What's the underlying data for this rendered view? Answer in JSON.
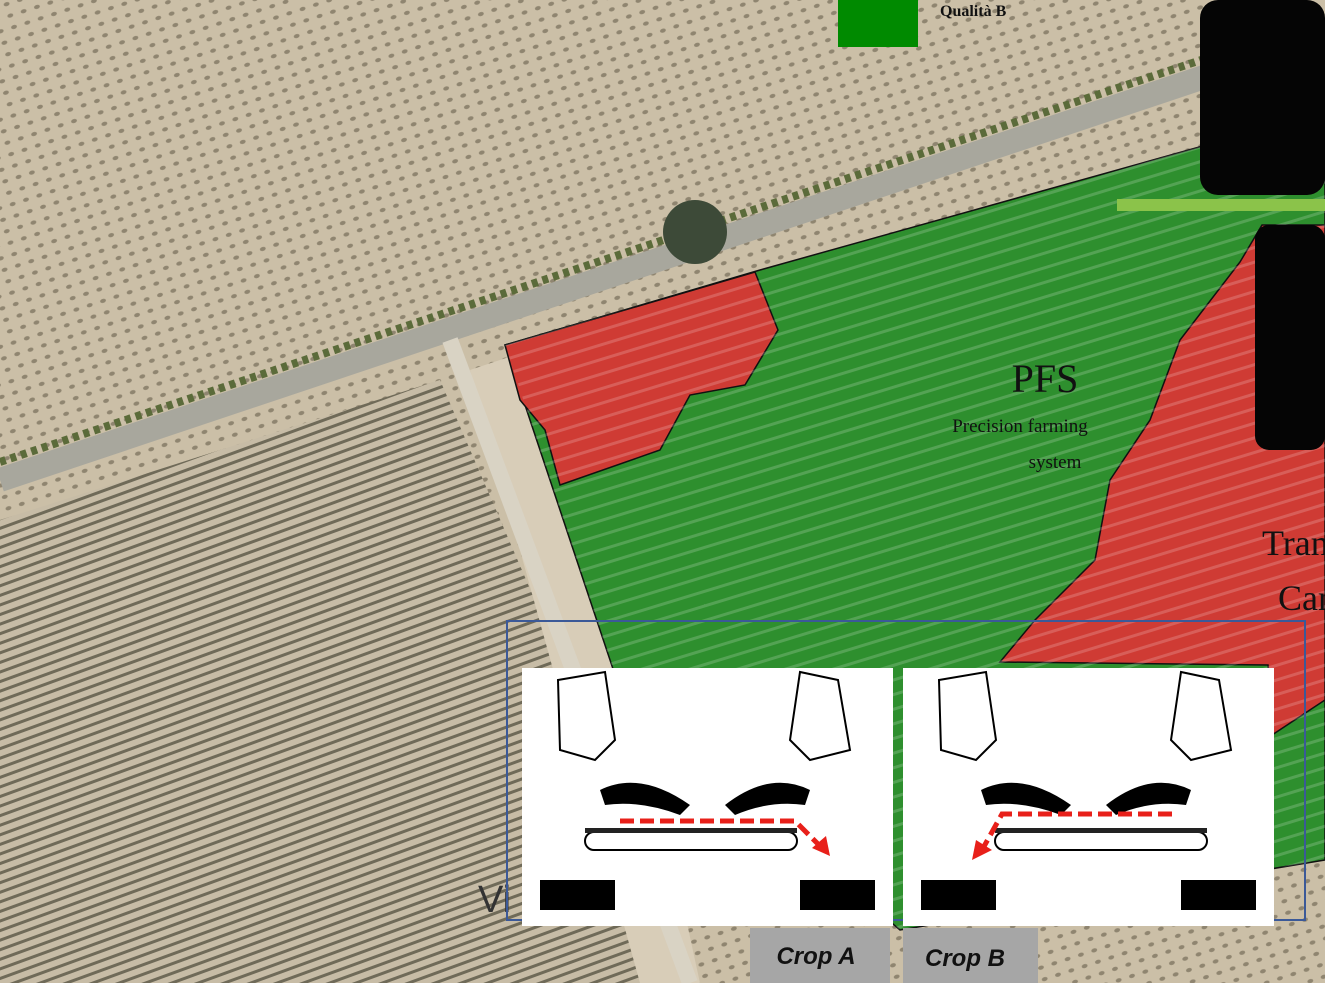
{
  "legend": {
    "label": "Qualità B"
  },
  "field": {
    "title": "PFS",
    "subtitle": [
      "Precision farming",
      "system"
    ]
  },
  "side_labels": [
    "Trans",
    "Carr"
  ],
  "overlay_text": "Vi",
  "panels": [
    {
      "label": "Crop A"
    },
    {
      "label": "Crop B"
    }
  ]
}
